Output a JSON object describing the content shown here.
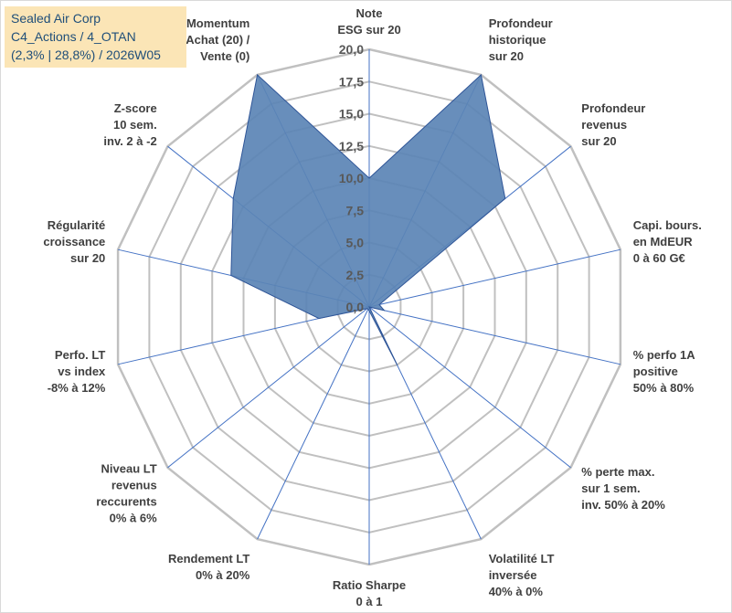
{
  "info": {
    "company": "Sealed Air Corp",
    "portfolio": "C4_Actions / 4_OTAN",
    "stats": "(2,3% | 28,8%) / 2026W05"
  },
  "colors": {
    "grid": "#c0c0c0",
    "spoke": "#4472c4",
    "fill": "#5b84b5",
    "stroke": "#2f5597",
    "text": "#404040",
    "tick": "#595959",
    "info_bg": "#fbe5b6",
    "info_text": "#1f4e79"
  },
  "chart_data": {
    "type": "radar",
    "rmax": 20,
    "tick_values": [
      0,
      2.5,
      5,
      7.5,
      10,
      12.5,
      15,
      17.5,
      20
    ],
    "tick_labels": [
      "0,0",
      "2,5",
      "5,0",
      "7,5",
      "10,0",
      "12,5",
      "15,0",
      "17,5",
      "20,0"
    ],
    "axes": [
      {
        "lines": [
          "Note",
          "ESG sur 20"
        ]
      },
      {
        "lines": [
          "Profondeur",
          "historique",
          "sur 20"
        ]
      },
      {
        "lines": [
          "Profondeur",
          "revenus",
          "sur 20"
        ]
      },
      {
        "lines": [
          "Capi. bours.",
          "en MdEUR",
          "0 à 60 G€"
        ]
      },
      {
        "lines": [
          "% perfo 1A",
          "positive",
          "50% à 80%"
        ]
      },
      {
        "lines": [
          "% perte max.",
          "sur 1 sem.",
          "inv. 50% à 20%"
        ]
      },
      {
        "lines": [
          "Volatilité LT",
          "inversée",
          "40% à 0%"
        ]
      },
      {
        "lines": [
          "Ratio Sharpe",
          "0 à 1"
        ]
      },
      {
        "lines": [
          "Rendement LT",
          "0% à 20%"
        ]
      },
      {
        "lines": [
          "Niveau LT",
          "revenus",
          "reccurents",
          "0% à 6%"
        ]
      },
      {
        "lines": [
          "Perfo. LT",
          "vs index",
          "-8% à 12%"
        ]
      },
      {
        "lines": [
          "Régularité",
          "croissance",
          "sur 20"
        ]
      },
      {
        "lines": [
          "Z-score",
          "10 sem.",
          "inv. 2 à -2"
        ]
      },
      {
        "lines": [
          "Momentum",
          "Achat (20) /",
          "Vente (0)"
        ]
      }
    ],
    "series": [
      {
        "name": "Sealed Air Corp",
        "values": [
          10.0,
          20.0,
          13.5,
          0.8,
          1.2,
          0.0,
          5.0,
          0.3,
          0.2,
          0.2,
          4.0,
          11.0,
          13.5,
          20.0
        ]
      }
    ]
  }
}
